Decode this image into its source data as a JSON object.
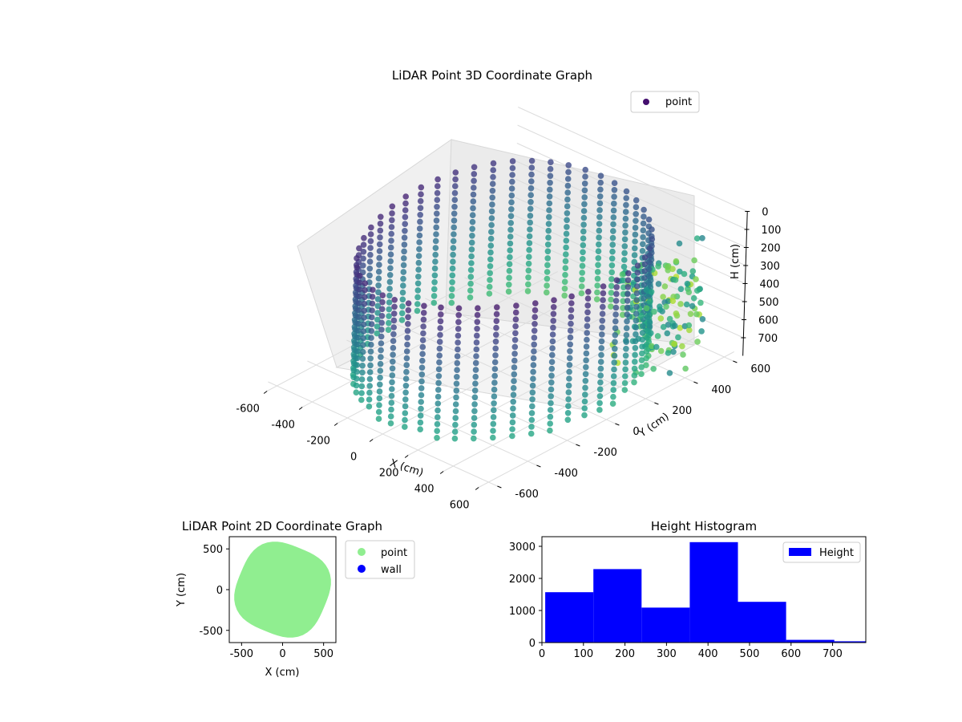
{
  "chart_data": [
    {
      "type": "scatter",
      "title": "LiDAR Point 3D Coordinate Graph",
      "xlabel": "X (cm)",
      "ylabel": "Y (cm)",
      "zlabel": "H (cm)",
      "legend": [
        "point"
      ],
      "legend_position": "top-right",
      "xlim": [
        -650,
        650
      ],
      "ylim": [
        -650,
        650
      ],
      "zlim": [
        800,
        0
      ],
      "xticks": [
        "-600",
        "-400",
        "-200",
        "0",
        "200",
        "400",
        "600"
      ],
      "yticks": [
        "-600",
        "-400",
        "-200",
        "0",
        "200",
        "400",
        "600"
      ],
      "zticks": [
        "0",
        "100",
        "200",
        "300",
        "400",
        "500",
        "600",
        "700"
      ],
      "colormap": "viridis",
      "grid": true,
      "series": [
        {
          "name": "point",
          "description": "cylindrical wall of points radius ~550 cm, heights 0-780 cm, colored by height"
        }
      ]
    },
    {
      "type": "scatter",
      "title": "LiDAR Point 2D Coordinate Graph",
      "xlabel": "X (cm)",
      "ylabel": "Y (cm)",
      "xticks": [
        "-500",
        "0",
        "500"
      ],
      "yticks": [
        "-500",
        "0",
        "500"
      ],
      "xlim": [
        -650,
        650
      ],
      "ylim": [
        -650,
        650
      ],
      "legend_position": "outside-right",
      "series": [
        {
          "name": "point",
          "color": "#90ee90"
        },
        {
          "name": "wall",
          "color": "#0000ff"
        }
      ]
    },
    {
      "type": "bar",
      "title": "Height Histogram",
      "xlabel": "",
      "ylabel": "",
      "legend": [
        "Height"
      ],
      "legend_position": "top-right",
      "color": "#0000ff",
      "xlim": [
        0,
        780
      ],
      "ylim": [
        0,
        3300
      ],
      "xticks": [
        "0",
        "100",
        "200",
        "300",
        "400",
        "500",
        "600",
        "700"
      ],
      "yticks": [
        "0",
        "1000",
        "2000",
        "3000"
      ],
      "bins": [
        {
          "start": 8,
          "end": 124,
          "count": 1570
        },
        {
          "start": 124,
          "end": 240,
          "count": 2290
        },
        {
          "start": 240,
          "end": 356,
          "count": 1090
        },
        {
          "start": 356,
          "end": 472,
          "count": 3130
        },
        {
          "start": 472,
          "end": 588,
          "count": 1270
        },
        {
          "start": 588,
          "end": 704,
          "count": 85
        },
        {
          "start": 704,
          "end": 820,
          "count": 40
        }
      ]
    }
  ]
}
